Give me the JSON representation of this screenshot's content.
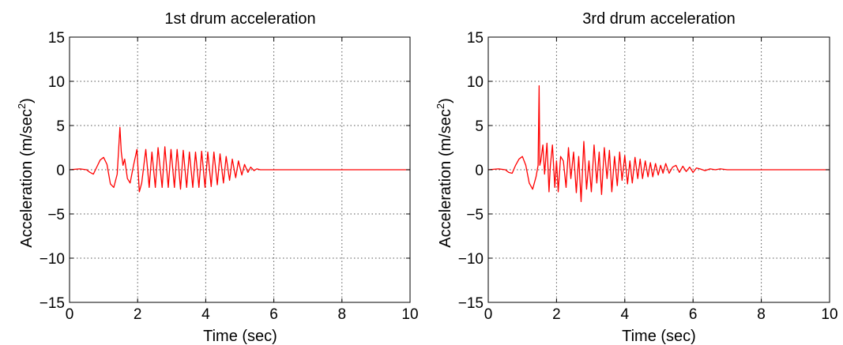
{
  "chart_data": [
    {
      "type": "line",
      "title": "1st drum acceleration",
      "xlabel": "Time (sec)",
      "ylabel": "Acceleration (m/sec",
      "ylabel_sup": "2",
      "ylabel_close": ")",
      "xlim": [
        0,
        10
      ],
      "ylim": [
        -15,
        15
      ],
      "xticks": [
        "0",
        "2",
        "4",
        "6",
        "8",
        "10"
      ],
      "yticks": [
        "−15",
        "−10",
        "−5",
        "0",
        "5",
        "10",
        "15"
      ],
      "grid": true,
      "color": "#ff0000",
      "x": [
        0.0,
        0.3,
        0.5,
        0.6,
        0.7,
        0.8,
        0.9,
        1.0,
        1.1,
        1.2,
        1.3,
        1.4,
        1.48,
        1.52,
        1.57,
        1.62,
        1.7,
        1.78,
        1.88,
        1.98,
        2.05,
        2.12,
        2.24,
        2.34,
        2.42,
        2.52,
        2.6,
        2.72,
        2.8,
        2.9,
        2.98,
        3.08,
        3.16,
        3.26,
        3.34,
        3.44,
        3.52,
        3.62,
        3.7,
        3.8,
        3.88,
        3.98,
        4.06,
        4.16,
        4.24,
        4.34,
        4.42,
        4.52,
        4.6,
        4.7,
        4.78,
        4.88,
        4.96,
        5.06,
        5.14,
        5.24,
        5.32,
        5.42,
        5.5,
        5.6,
        5.7,
        5.8,
        6.0,
        7.0,
        8.0,
        9.0,
        10.0
      ],
      "y": [
        0.0,
        0.1,
        0.0,
        -0.3,
        -0.5,
        0.3,
        1.1,
        1.4,
        0.6,
        -1.6,
        -2.0,
        -0.5,
        4.8,
        2.0,
        0.5,
        1.2,
        -1.0,
        -1.5,
        0.5,
        2.3,
        -2.5,
        -1.5,
        2.3,
        -2.0,
        2.0,
        -2.0,
        2.5,
        -2.0,
        2.6,
        -2.0,
        2.3,
        -2.0,
        2.3,
        -2.2,
        2.2,
        -2.0,
        2.0,
        -2.0,
        2.0,
        -2.0,
        2.1,
        -2.0,
        2.0,
        -1.9,
        2.0,
        -1.7,
        1.8,
        -1.5,
        1.5,
        -1.2,
        1.2,
        -0.9,
        1.0,
        -0.6,
        0.6,
        -0.3,
        0.3,
        -0.1,
        0.1,
        0.0,
        0.0,
        0.0,
        0.0,
        0.0,
        0.0,
        0.0,
        0.0
      ]
    },
    {
      "type": "line",
      "title": "3rd drum acceleration",
      "xlabel": "Time (sec)",
      "ylabel": "Acceleration (m/sec",
      "ylabel_sup": "2",
      "ylabel_close": ")",
      "xlim": [
        0,
        10
      ],
      "ylim": [
        -15,
        15
      ],
      "xticks": [
        "0",
        "2",
        "4",
        "6",
        "8",
        "10"
      ],
      "yticks": [
        "−15",
        "−10",
        "−5",
        "0",
        "5",
        "10",
        "15"
      ],
      "grid": true,
      "color": "#ff0000",
      "x": [
        0.0,
        0.3,
        0.5,
        0.6,
        0.7,
        0.8,
        0.9,
        1.0,
        1.1,
        1.2,
        1.3,
        1.4,
        1.46,
        1.49,
        1.51,
        1.54,
        1.6,
        1.65,
        1.72,
        1.78,
        1.82,
        1.88,
        1.95,
        2.0,
        2.05,
        2.12,
        2.2,
        2.28,
        2.35,
        2.42,
        2.5,
        2.58,
        2.65,
        2.72,
        2.8,
        2.88,
        2.95,
        3.02,
        3.1,
        3.18,
        3.25,
        3.32,
        3.4,
        3.48,
        3.55,
        3.62,
        3.7,
        3.78,
        3.85,
        3.92,
        4.0,
        4.08,
        4.15,
        4.22,
        4.3,
        4.38,
        4.45,
        4.52,
        4.6,
        4.68,
        4.75,
        4.82,
        4.9,
        4.98,
        5.05,
        5.12,
        5.2,
        5.3,
        5.4,
        5.5,
        5.6,
        5.7,
        5.8,
        5.9,
        6.0,
        6.1,
        6.2,
        6.35,
        6.5,
        6.65,
        6.8,
        7.0,
        7.3,
        7.6,
        8.0,
        9.0,
        10.0
      ],
      "y": [
        0.0,
        0.1,
        0.0,
        -0.3,
        -0.4,
        0.5,
        1.2,
        1.5,
        0.5,
        -1.5,
        -2.2,
        -0.8,
        0.5,
        9.5,
        0.5,
        1.0,
        2.8,
        -0.5,
        3.0,
        -2.5,
        0.5,
        2.8,
        -2.0,
        1.0,
        -2.5,
        1.5,
        1.0,
        -2.0,
        2.5,
        -1.0,
        2.0,
        -2.6,
        1.5,
        -3.6,
        3.2,
        -2.2,
        1.0,
        -2.5,
        2.8,
        -1.5,
        2.0,
        -2.8,
        2.5,
        -1.0,
        2.2,
        -2.5,
        1.5,
        -1.8,
        2.0,
        -1.2,
        1.6,
        -1.6,
        1.0,
        -1.5,
        1.4,
        -1.0,
        1.2,
        -1.0,
        1.0,
        -0.8,
        0.8,
        -0.8,
        0.7,
        -0.6,
        0.5,
        -0.4,
        0.7,
        -0.4,
        0.3,
        0.5,
        -0.3,
        0.4,
        -0.2,
        0.3,
        -0.3,
        0.2,
        0.1,
        -0.1,
        0.1,
        0.0,
        0.1,
        0.0,
        0.0,
        0.0,
        0.0,
        0.0,
        0.0
      ]
    }
  ]
}
